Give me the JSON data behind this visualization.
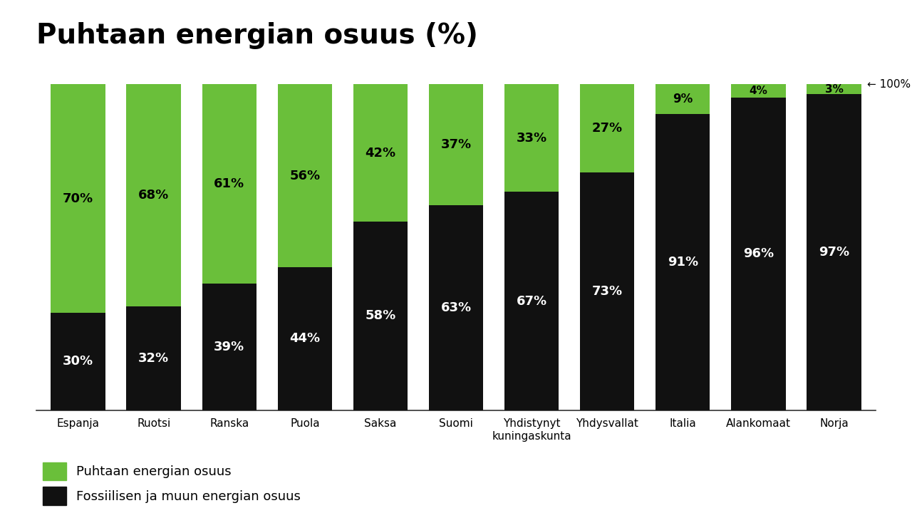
{
  "title": "Puhtaan energian osuus (%)",
  "categories": [
    "Espanja",
    "Ruotsi",
    "Ranska",
    "Puola",
    "Saksa",
    "Suomi",
    "Yhdistynyt\nkuningaskunta",
    "Yhdysvallat",
    "Italia",
    "Alankomaat",
    "Norja"
  ],
  "clean_pct": [
    70,
    68,
    61,
    56,
    42,
    37,
    33,
    27,
    9,
    4,
    3
  ],
  "fossil_pct": [
    30,
    32,
    39,
    44,
    58,
    63,
    67,
    73,
    91,
    96,
    97
  ],
  "green_color": "#6abf3a",
  "black_color": "#111111",
  "bg_color": "#ffffff",
  "bar_width": 0.72,
  "legend_clean": "Puhtaan energian osuus",
  "legend_fossil": "Fossiilisen ja muun energian osuus",
  "annotation_100": "← 100%",
  "title_fontsize": 28,
  "label_fontsize": 13,
  "tick_fontsize": 11,
  "legend_fontsize": 13
}
